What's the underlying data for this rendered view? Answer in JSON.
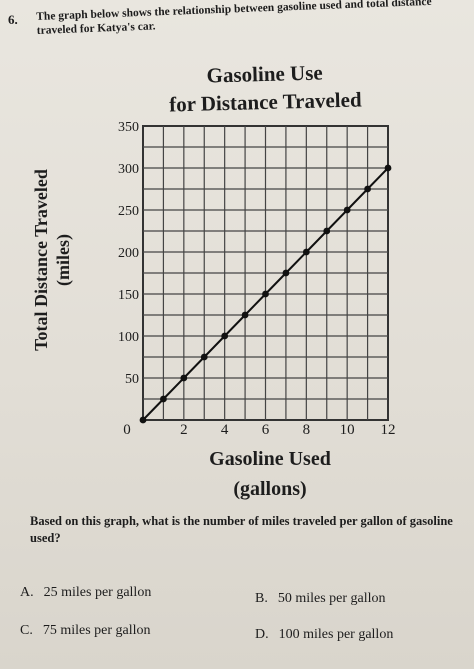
{
  "question_number": "6.",
  "intro_text": "The graph below shows the relationship between gasoline used and total distance traveled for Katya's car.",
  "chart_data": {
    "type": "line",
    "title": [
      "Gasoline Use",
      "for Distance Traveled"
    ],
    "ylabel": [
      "Total Distance Traveled",
      "(miles)"
    ],
    "xlabel": [
      "Gasoline Used",
      "(gallons)"
    ],
    "xlim": [
      0,
      12
    ],
    "ylim": [
      0,
      350
    ],
    "x_ticks": [
      "0",
      "2",
      "4",
      "6",
      "8",
      "10",
      "12"
    ],
    "y_ticks": [
      "50",
      "100",
      "150",
      "200",
      "250",
      "300",
      "350"
    ],
    "grid": true,
    "series": [
      {
        "x": [
          0,
          1,
          2,
          3,
          4,
          5,
          6,
          7,
          8,
          9,
          10,
          11,
          12
        ],
        "y": [
          0,
          25,
          50,
          75,
          100,
          125,
          150,
          175,
          200,
          225,
          250,
          275,
          300
        ]
      }
    ]
  },
  "question_text": "Based on this graph, what is the number of miles traveled per gallon of gasoline used?",
  "choices": [
    {
      "letter": "A.",
      "text": "25 miles per gallon"
    },
    {
      "letter": "B.",
      "text": "50 miles per gallon"
    },
    {
      "letter": "C.",
      "text": "75 miles per gallon"
    },
    {
      "letter": "D.",
      "text": "100 miles per gallon"
    }
  ]
}
